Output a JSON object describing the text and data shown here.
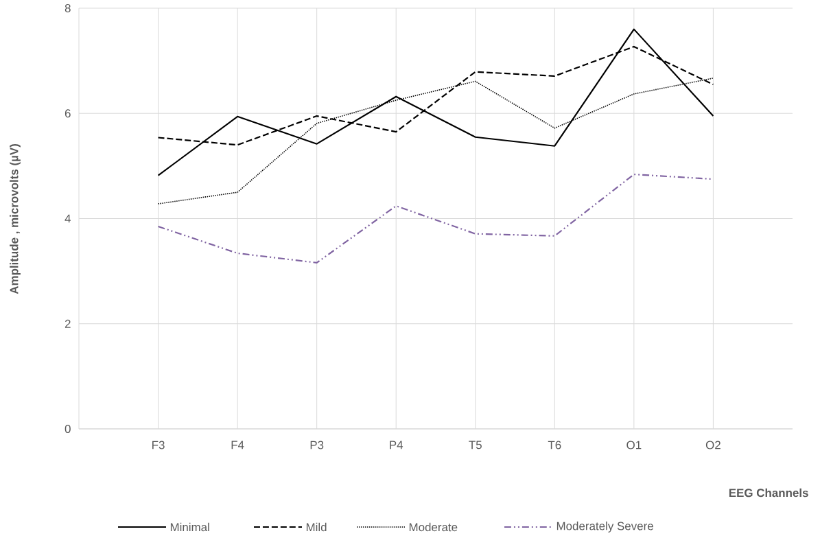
{
  "chart_data": {
    "type": "line",
    "xlabel": "EEG Channels",
    "ylabel": "Amplitude , microvolts (µV)",
    "categories": [
      "F3",
      "F4",
      "P3",
      "P4",
      "T5",
      "T6",
      "O1",
      "O2"
    ],
    "series": [
      {
        "name": "Minimal",
        "color": "#000000",
        "line_style": "solid",
        "values": [
          4.82,
          5.94,
          5.42,
          6.32,
          5.55,
          5.38,
          7.6,
          5.95
        ]
      },
      {
        "name": "Mild",
        "color": "#000000",
        "line_style": "dashed",
        "values": [
          5.54,
          5.4,
          5.95,
          5.65,
          6.79,
          6.71,
          7.27,
          6.55
        ]
      },
      {
        "name": "Moderate",
        "color": "#000000",
        "line_style": "dotted",
        "values": [
          4.28,
          4.5,
          5.81,
          6.25,
          6.61,
          5.72,
          6.37,
          6.67
        ]
      },
      {
        "name": "Moderately Severe",
        "color": "#8064a2",
        "line_style": "dashdot",
        "values": [
          3.85,
          3.34,
          3.16,
          4.24,
          3.71,
          3.67,
          4.84,
          4.75
        ]
      }
    ],
    "ylim": [
      0,
      8
    ],
    "yticks": [
      0,
      2,
      4,
      6,
      8
    ],
    "grid": true,
    "legend": "bottom",
    "marker": "none"
  }
}
